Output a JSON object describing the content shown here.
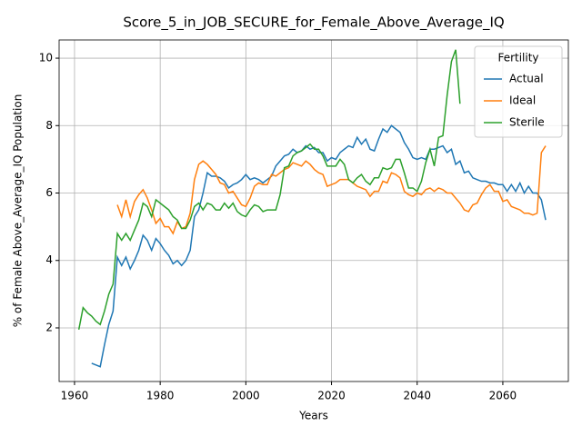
{
  "chart_data": {
    "type": "line",
    "title": "Score_5_in_JOB_SECURE_for_Female_Above_Average_IQ",
    "x_label": "Years",
    "y_label": "% of Female Above_Average_IQ Population",
    "legend_title": "Fertility",
    "legend": "upper right",
    "grid": true,
    "xlim": [
      1956.4,
      2075.3
    ],
    "ylim": [
      0.41,
      10.54
    ],
    "xticks": [
      1960,
      1980,
      2000,
      2020,
      2040,
      2060
    ],
    "yticks": [
      2,
      4,
      6,
      8,
      10
    ],
    "x": [
      1961,
      1962,
      1963,
      1964,
      1965,
      1966,
      1967,
      1968,
      1969,
      1970,
      1971,
      1972,
      1973,
      1974,
      1975,
      1976,
      1977,
      1978,
      1979,
      1980,
      1981,
      1982,
      1983,
      1984,
      1985,
      1986,
      1987,
      1988,
      1989,
      1990,
      1991,
      1992,
      1993,
      1994,
      1995,
      1996,
      1997,
      1998,
      1999,
      2000,
      2001,
      2002,
      2003,
      2004,
      2005,
      2006,
      2007,
      2008,
      2009,
      2010,
      2011,
      2012,
      2013,
      2014,
      2015,
      2016,
      2017,
      2018,
      2019,
      2020,
      2021,
      2022,
      2023,
      2024,
      2025,
      2026,
      2027,
      2028,
      2029,
      2030,
      2031,
      2032,
      2033,
      2034,
      2035,
      2036,
      2037,
      2038,
      2039,
      2040,
      2041,
      2042,
      2043,
      2044,
      2045,
      2046,
      2047,
      2048,
      2049,
      2050,
      2051,
      2052,
      2053,
      2054,
      2055,
      2056,
      2057,
      2058,
      2059,
      2060,
      2061,
      2062,
      2063,
      2064,
      2065,
      2066,
      2067,
      2068,
      2069,
      2070
    ],
    "series": [
      {
        "name": "Actual",
        "color": "#1f77b4",
        "values": [
          null,
          null,
          null,
          0.95,
          0.9,
          0.85,
          1.5,
          2.1,
          2.5,
          4.1,
          3.85,
          4.1,
          3.75,
          4.0,
          4.3,
          4.75,
          4.6,
          4.3,
          4.65,
          4.5,
          4.3,
          4.15,
          3.9,
          4.0,
          3.85,
          4.0,
          4.3,
          5.3,
          5.5,
          6.0,
          6.6,
          6.5,
          6.5,
          6.45,
          6.35,
          6.15,
          6.25,
          6.3,
          6.4,
          6.55,
          6.4,
          6.45,
          6.4,
          6.3,
          6.4,
          6.5,
          6.8,
          6.95,
          7.1,
          7.15,
          7.3,
          7.2,
          7.25,
          7.4,
          7.3,
          7.35,
          7.2,
          7.2,
          6.95,
          7.05,
          7.0,
          7.2,
          7.3,
          7.4,
          7.35,
          7.65,
          7.45,
          7.6,
          7.3,
          7.25,
          7.6,
          7.9,
          7.8,
          8.0,
          7.9,
          7.8,
          7.5,
          7.3,
          7.05,
          7.0,
          7.05,
          7.0,
          7.3,
          7.3,
          7.35,
          7.4,
          7.2,
          7.3,
          6.85,
          6.95,
          6.6,
          6.65,
          6.45,
          6.4,
          6.35,
          6.35,
          6.3,
          6.3,
          6.25,
          6.25,
          6.05,
          6.25,
          6.05,
          6.3,
          6.0,
          6.2,
          6.0,
          6.0,
          5.8,
          5.2
        ]
      },
      {
        "name": "Ideal",
        "color": "#ff7f0e",
        "values": [
          null,
          null,
          null,
          null,
          null,
          null,
          null,
          null,
          null,
          5.65,
          5.3,
          5.8,
          5.3,
          5.75,
          5.95,
          6.1,
          5.85,
          5.5,
          5.1,
          5.25,
          5.0,
          5.0,
          4.8,
          5.15,
          4.95,
          5.0,
          5.4,
          6.4,
          6.85,
          6.95,
          6.85,
          6.7,
          6.55,
          6.3,
          6.25,
          6.0,
          6.05,
          5.85,
          5.65,
          5.6,
          5.85,
          6.2,
          6.3,
          6.25,
          6.25,
          6.55,
          6.5,
          6.6,
          6.7,
          6.75,
          6.9,
          6.85,
          6.8,
          6.95,
          6.85,
          6.7,
          6.6,
          6.55,
          6.2,
          6.25,
          6.3,
          6.4,
          6.4,
          6.4,
          6.3,
          6.2,
          6.15,
          6.1,
          5.9,
          6.05,
          6.05,
          6.35,
          6.3,
          6.6,
          6.55,
          6.45,
          6.05,
          5.95,
          5.9,
          6.0,
          5.95,
          6.1,
          6.15,
          6.05,
          6.15,
          6.1,
          6.0,
          6.0,
          5.85,
          5.7,
          5.5,
          5.45,
          5.65,
          5.7,
          5.95,
          6.15,
          6.25,
          6.05,
          6.05,
          5.75,
          5.8,
          5.6,
          5.55,
          5.5,
          5.4,
          5.4,
          5.35,
          5.4,
          7.2,
          7.4
        ]
      },
      {
        "name": "Sterile",
        "color": "#2ca02c",
        "values": [
          1.95,
          2.6,
          2.45,
          2.35,
          2.2,
          2.1,
          2.5,
          3.0,
          3.3,
          4.8,
          4.6,
          4.8,
          4.6,
          4.9,
          5.2,
          5.7,
          5.6,
          5.3,
          5.8,
          5.7,
          5.6,
          5.5,
          5.3,
          5.2,
          4.95,
          4.95,
          5.2,
          5.6,
          5.7,
          5.5,
          5.7,
          5.65,
          5.5,
          5.5,
          5.7,
          5.55,
          5.7,
          5.45,
          5.35,
          5.3,
          5.5,
          5.65,
          5.6,
          5.45,
          5.5,
          5.5,
          5.5,
          5.95,
          6.75,
          6.8,
          7.1,
          7.2,
          7.25,
          7.35,
          7.45,
          7.3,
          7.3,
          7.1,
          6.8,
          6.8,
          6.8,
          7.0,
          6.85,
          6.4,
          6.3,
          6.45,
          6.55,
          6.35,
          6.25,
          6.45,
          6.45,
          6.75,
          6.7,
          6.75,
          7.0,
          7.0,
          6.6,
          6.15,
          6.15,
          6.05,
          6.35,
          6.9,
          7.3,
          6.8,
          7.65,
          7.7,
          8.9,
          9.9,
          10.25,
          8.65,
          null,
          null,
          null,
          null,
          null,
          null,
          null,
          null,
          null,
          null,
          null,
          null,
          null,
          null,
          null,
          null,
          null,
          null,
          null,
          null
        ]
      }
    ]
  }
}
